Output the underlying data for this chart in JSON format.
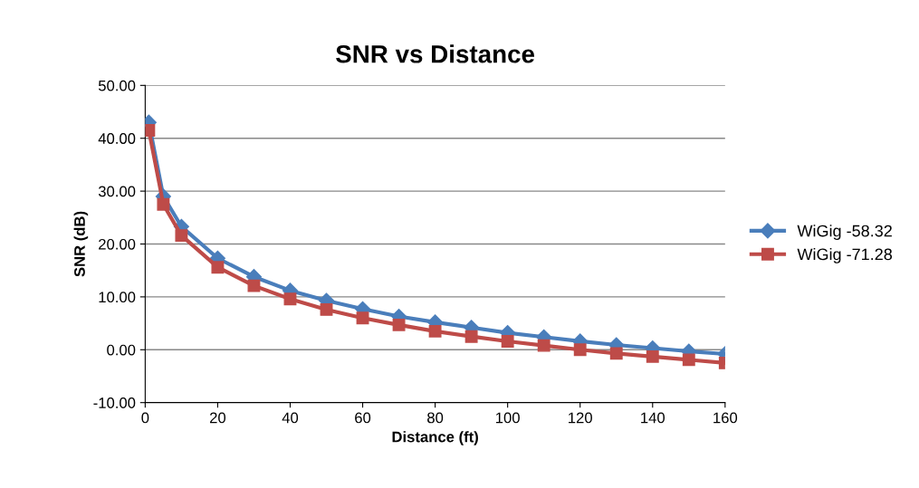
{
  "chart_data": {
    "type": "line",
    "title": "SNR vs Distance",
    "xlabel": "Distance (ft)",
    "ylabel": "SNR (dB)",
    "x": [
      1,
      5,
      10,
      20,
      30,
      40,
      50,
      60,
      70,
      80,
      90,
      100,
      110,
      120,
      130,
      140,
      150,
      160
    ],
    "xlim": [
      0,
      160
    ],
    "xticks": [
      0,
      20,
      40,
      60,
      80,
      100,
      120,
      140,
      160
    ],
    "ylim": [
      -10,
      50
    ],
    "yticks": [
      {
        "value": -10,
        "label": "-10.00"
      },
      {
        "value": 0,
        "label": "0.00"
      },
      {
        "value": 10,
        "label": "10.00"
      },
      {
        "value": 20,
        "label": "20.00"
      },
      {
        "value": 30,
        "label": "30.00"
      },
      {
        "value": 40,
        "label": "40.00"
      },
      {
        "value": 50,
        "label": "50.00"
      }
    ],
    "grid": "y",
    "legend": "right",
    "series": [
      {
        "name": "WiGig -58.32",
        "color": "#4a7ebb",
        "marker": "diamond",
        "values": [
          43.0,
          29.0,
          23.3,
          17.3,
          13.8,
          11.2,
          9.3,
          7.7,
          6.3,
          5.2,
          4.2,
          3.2,
          2.4,
          1.6,
          0.9,
          0.3,
          -0.3,
          -0.8
        ]
      },
      {
        "name": "WiGig -71.28",
        "color": "#be4b48",
        "marker": "square",
        "values": [
          41.5,
          27.5,
          21.6,
          15.6,
          12.1,
          9.6,
          7.6,
          6.0,
          4.7,
          3.5,
          2.5,
          1.6,
          0.8,
          0.0,
          -0.7,
          -1.3,
          -1.9,
          -2.5
        ]
      }
    ]
  }
}
